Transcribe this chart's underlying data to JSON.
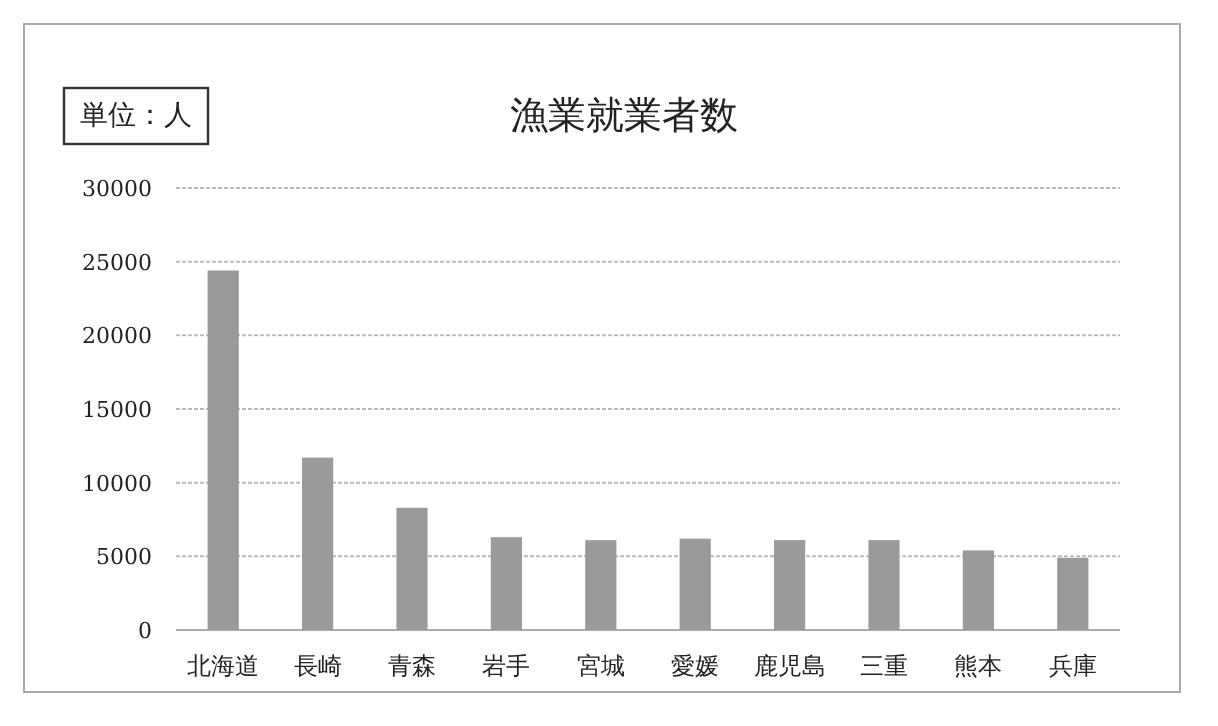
{
  "chart_data": {
    "type": "bar",
    "title": "漁業就業者数",
    "annotations": [
      "単位：人"
    ],
    "categories": [
      "北海道",
      "長崎",
      "青森",
      "岩手",
      "宮城",
      "愛媛",
      "鹿児島",
      "三重",
      "熊本",
      "兵庫"
    ],
    "values": [
      24400,
      11700,
      8300,
      6300,
      6100,
      6200,
      6100,
      6100,
      5400,
      4900
    ],
    "color": "#9a9a9a",
    "ylim": [
      0,
      30000
    ],
    "yticks": [
      0,
      5000,
      10000,
      15000,
      20000,
      25000,
      30000
    ],
    "grid": "y"
  }
}
